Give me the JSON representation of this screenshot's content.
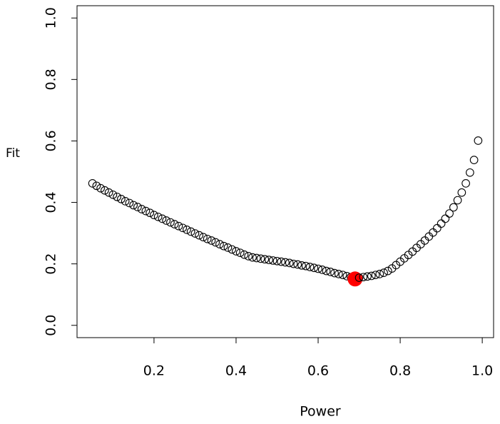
{
  "chart_data": {
    "type": "scatter",
    "x_label": "Power",
    "y_label": "Fit",
    "x": [
      0.05,
      0.06,
      0.07,
      0.08,
      0.09,
      0.1,
      0.11,
      0.12,
      0.13,
      0.14,
      0.15,
      0.16,
      0.17,
      0.18,
      0.19,
      0.2,
      0.21,
      0.22,
      0.23,
      0.24,
      0.25,
      0.26,
      0.27,
      0.28,
      0.29,
      0.3,
      0.31,
      0.32,
      0.33,
      0.34,
      0.35,
      0.36,
      0.37,
      0.38,
      0.39,
      0.4,
      0.41,
      0.42,
      0.43,
      0.44,
      0.45,
      0.46,
      0.47,
      0.48,
      0.49,
      0.5,
      0.51,
      0.52,
      0.53,
      0.54,
      0.55,
      0.56,
      0.57,
      0.58,
      0.59,
      0.6,
      0.61,
      0.62,
      0.63,
      0.64,
      0.65,
      0.66,
      0.67,
      0.68,
      0.69,
      0.7,
      0.71,
      0.72,
      0.73,
      0.74,
      0.75,
      0.76,
      0.77,
      0.78,
      0.79,
      0.8,
      0.81,
      0.82,
      0.83,
      0.84,
      0.85,
      0.86,
      0.87,
      0.88,
      0.89,
      0.9,
      0.91,
      0.92,
      0.93,
      0.94,
      0.95,
      0.96,
      0.97,
      0.98,
      0.99
    ],
    "values": [
      0.462,
      0.454,
      0.446,
      0.439,
      0.432,
      0.425,
      0.418,
      0.411,
      0.404,
      0.398,
      0.391,
      0.385,
      0.378,
      0.372,
      0.366,
      0.359,
      0.353,
      0.347,
      0.341,
      0.335,
      0.329,
      0.323,
      0.317,
      0.311,
      0.305,
      0.299,
      0.293,
      0.287,
      0.281,
      0.276,
      0.27,
      0.264,
      0.258,
      0.253,
      0.247,
      0.241,
      0.236,
      0.23,
      0.225,
      0.221,
      0.219,
      0.217,
      0.215,
      0.213,
      0.211,
      0.209,
      0.207,
      0.205,
      0.203,
      0.2,
      0.198,
      0.195,
      0.193,
      0.19,
      0.187,
      0.184,
      0.181,
      0.177,
      0.174,
      0.17,
      0.167,
      0.164,
      0.16,
      0.157,
      0.151,
      0.155,
      0.157,
      0.159,
      0.161,
      0.164,
      0.167,
      0.171,
      0.177,
      0.185,
      0.196,
      0.207,
      0.218,
      0.229,
      0.24,
      0.252,
      0.264,
      0.276,
      0.289,
      0.302,
      0.316,
      0.331,
      0.347,
      0.364,
      0.384,
      0.407,
      0.432,
      0.462,
      0.497,
      0.538,
      0.601
    ],
    "color": "#000000",
    "highlight_index": 64,
    "highlight_color": "#ff0000",
    "xlim": [
      0.0124,
      1.0276
    ],
    "xticks": [
      0.2,
      0.4,
      0.6,
      0.8,
      {
        "value": 1.0,
        "label": "1.0"
      }
    ],
    "ylim": [
      -0.04,
      1.04
    ],
    "yticks": [
      {
        "value": 0,
        "label": "0.0"
      },
      0.2,
      0.4,
      0.6,
      0.8,
      {
        "value": 1.0,
        "label": "1.0"
      }
    ]
  }
}
